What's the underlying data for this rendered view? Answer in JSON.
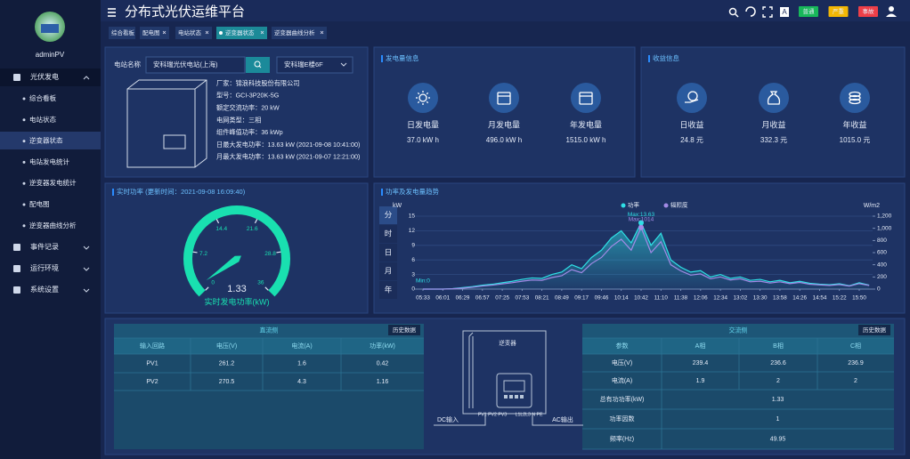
{
  "sidebar": {
    "user": "adminPV",
    "menu": [
      {
        "label": "光伏发电",
        "children": [
          "综合看板",
          "电站状态",
          "逆变器状态",
          "电站发电统计",
          "逆变器发电统计",
          "配电图",
          "逆变器曲线分析"
        ]
      },
      {
        "label": "事件记录"
      },
      {
        "label": "运行环境"
      },
      {
        "label": "系统设置"
      }
    ]
  },
  "header": {
    "title": "分布式光伏运维平台",
    "font_icon": "A",
    "alerts": [
      {
        "label": "普通",
        "color": "#18b85a"
      },
      {
        "label": "严重",
        "color": "#f2b705"
      },
      {
        "label": "事故",
        "color": "#ee3f48"
      }
    ]
  },
  "tabs": [
    "综合看板",
    "配电图",
    "电站状态",
    "逆变器状态",
    "逆变器曲线分析"
  ],
  "station": {
    "label": "电站名称",
    "input": "安科瑞光伏电站(上海)",
    "select": "安科瑞E楼6F",
    "info": [
      "厂家：锦浪科技股份有限公司",
      "型号：GCI-3P20K-5G",
      "额定交流功率：20 kW",
      "电网类型：三相",
      "组件峰值功率：36 kWp",
      "日最大发电功率：13.63 kW (2021-09-08 10:41:00)",
      "月最大发电功率：13.63 kW (2021-09-07 12:21:00)"
    ]
  },
  "generation": {
    "title": "发电量信息",
    "items": [
      {
        "label": "日发电量",
        "value": "37.0 kW h"
      },
      {
        "label": "月发电量",
        "value": "496.0 kW h"
      },
      {
        "label": "年发电量",
        "value": "1515.0 kW h"
      }
    ]
  },
  "income": {
    "title": "收益信息",
    "items": [
      {
        "label": "日收益",
        "value": "24.8 元"
      },
      {
        "label": "月收益",
        "value": "332.3 元"
      },
      {
        "label": "年收益",
        "value": "1015.0 元"
      }
    ]
  },
  "chart_data": [
    {
      "type": "gauge",
      "title": "实时功率 (更新时间：2021-09-08 16:09:40)",
      "value": 1.33,
      "label": "实时发电功率(kW)",
      "ylim": [
        0,
        36
      ],
      "yticks": [
        0,
        7.2,
        14.4,
        21.6,
        28.8,
        36
      ],
      "color": "#19e0b0"
    },
    {
      "type": "line",
      "title": "功率及发电量趋势",
      "periods": [
        "分",
        "时",
        "日",
        "月",
        "年"
      ],
      "y_label": "kW",
      "y2_label": "W/m2",
      "categories": [
        "05:33",
        null,
        "06:01",
        null,
        "06:29",
        null,
        "06:57",
        null,
        "07:25",
        null,
        "07:53",
        null,
        "08:21",
        null,
        "08:49",
        null,
        "09:17",
        null,
        "09:46",
        null,
        "10:14",
        null,
        "10:42",
        null,
        "11:10",
        null,
        "11:38",
        null,
        "12:06",
        null,
        "12:34",
        null,
        "13:02",
        null,
        "13:30",
        null,
        "13:58",
        null,
        "14:26",
        null,
        "14:54",
        null,
        "15:22",
        null,
        "15:50",
        null
      ],
      "series": [
        {
          "name": "功率",
          "color": "#2fe0e6",
          "values": [
            0,
            0,
            0,
            0.1,
            0.3,
            0.5,
            0.8,
            1,
            1.3,
            1.6,
            2,
            2.3,
            2.2,
            3,
            3.5,
            5,
            4.2,
            6.5,
            8,
            10.5,
            12,
            9.5,
            13.63,
            9,
            11.5,
            6,
            4.5,
            3.5,
            3.8,
            2.5,
            3,
            2.2,
            2.5,
            1.8,
            2,
            1.5,
            1.8,
            1.3,
            1.6,
            1.2,
            1,
            0.9,
            1.1,
            0.7,
            1.3,
            0.8
          ]
        },
        {
          "name": "辐照度",
          "color": "#a28ae6",
          "axis": "y2",
          "values": [
            0,
            0,
            0,
            5,
            15,
            30,
            50,
            65,
            85,
            105,
            130,
            150,
            145,
            190,
            220,
            320,
            270,
            420,
            520,
            700,
            820,
            640,
            1014,
            600,
            780,
            400,
            300,
            230,
            250,
            170,
            200,
            150,
            170,
            120,
            130,
            100,
            120,
            90,
            110,
            80,
            70,
            60,
            75,
            50,
            90,
            60
          ]
        }
      ],
      "ylim": [
        0,
        15
      ],
      "yticks": [
        0,
        3,
        6,
        9,
        12,
        15
      ],
      "y2lim": [
        0,
        1200
      ],
      "y2ticks": [
        0,
        200,
        400,
        600,
        800,
        {
          "value": 1000,
          "label": "1,000"
        },
        {
          "value": 1200,
          "label": "1,200"
        }
      ],
      "annotations": [
        "Max:13.63",
        "Max:1014",
        "Min:0"
      ],
      "grid": true
    }
  ],
  "dc": {
    "title": "直流侧",
    "button": "历史数据",
    "headers": [
      "输入回路",
      "电压(V)",
      "电流(A)",
      "功率(kW)"
    ],
    "rows": [
      [
        "PV1",
        261.2,
        1.6,
        0.42
      ],
      [
        "PV2",
        270.5,
        4.3,
        1.16
      ]
    ]
  },
  "ac": {
    "title": "交流侧",
    "button": "历史数据",
    "headers": [
      "参数",
      "A相",
      "B相",
      "C相"
    ],
    "rows": [
      [
        "电压(V)",
        239.4,
        236.6,
        236.9
      ],
      [
        "电流(A)",
        1.9,
        2,
        2
      ],
      [
        "总有功功率(kW)",
        1.33
      ],
      [
        "功率因数",
        1
      ],
      [
        "频率(Hz)",
        49.95
      ]
    ]
  },
  "diagram": {
    "inverter": "逆变器",
    "dc": "DC输入",
    "ac": "AC输出",
    "dc_ports": "PV1 PV2 PV3",
    "ac_ports": "L1L2L3 N PE"
  }
}
